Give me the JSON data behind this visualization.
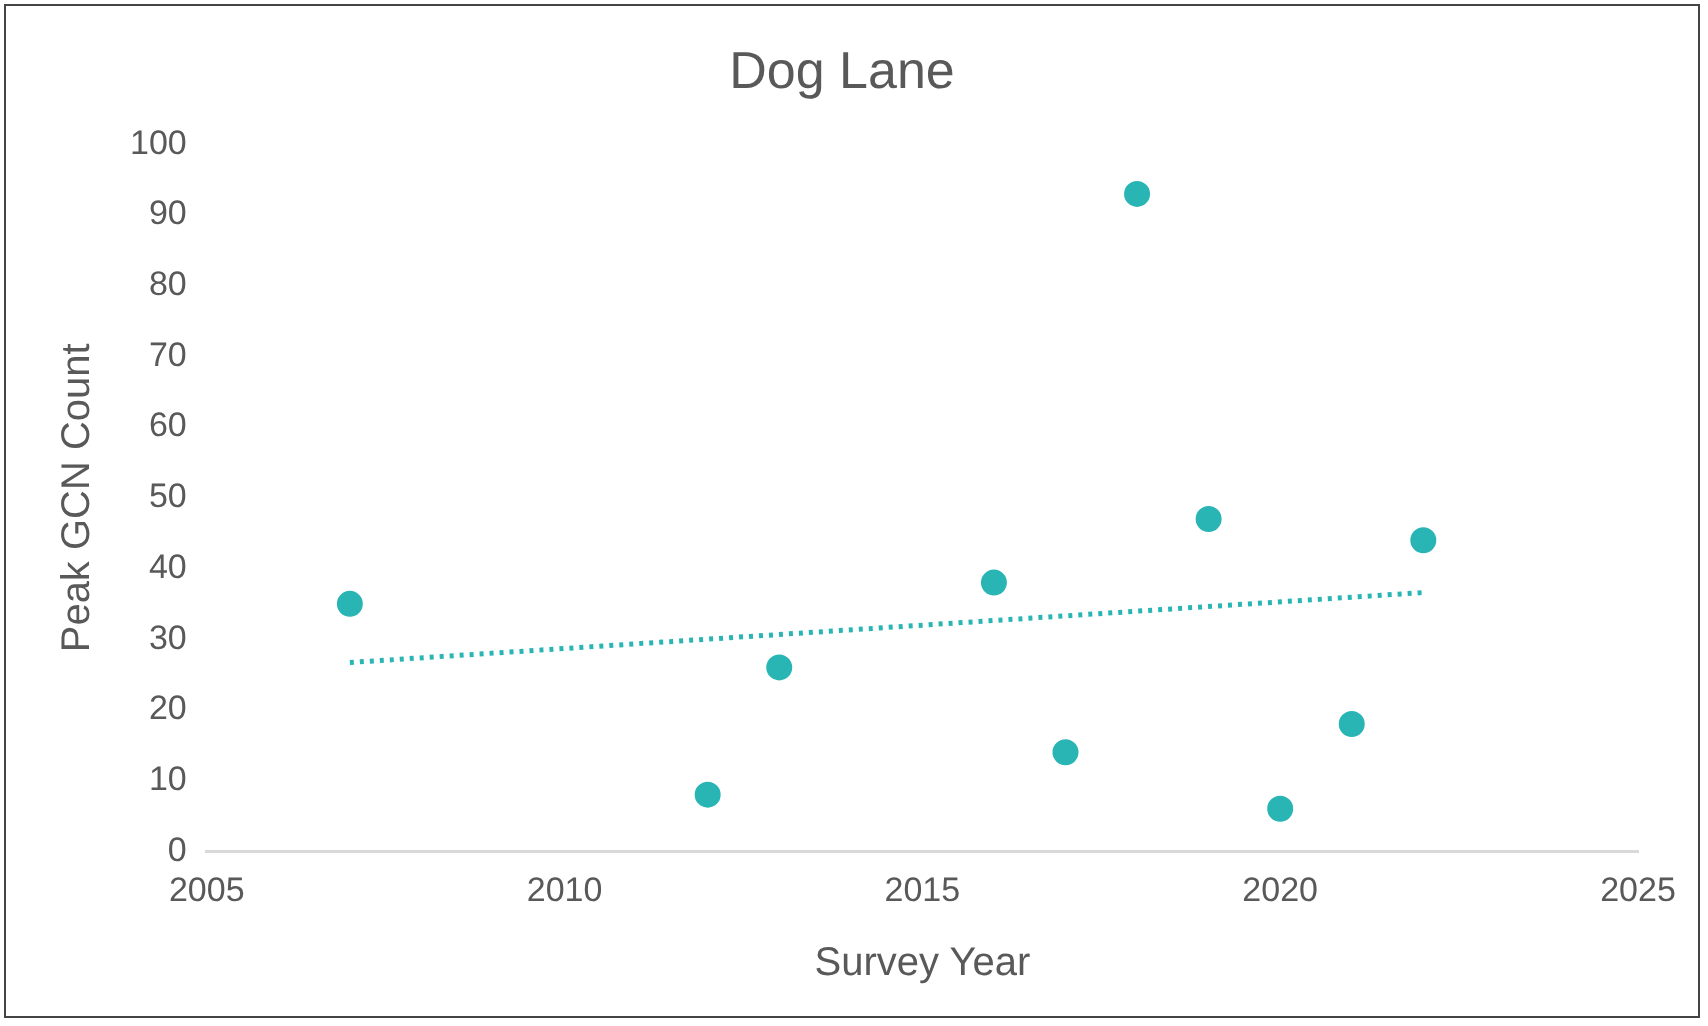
{
  "chart_data": {
    "type": "scatter",
    "title": "Dog Lane",
    "xlabel": "Survey Year",
    "ylabel": "Peak GCN Count",
    "xlim": [
      2005,
      2025
    ],
    "xticks": [
      2005,
      2010,
      2015,
      2020,
      2025
    ],
    "ylim": [
      0,
      100
    ],
    "yticks": [
      0,
      10,
      20,
      30,
      40,
      50,
      60,
      70,
      80,
      90,
      100
    ],
    "grid": false,
    "legend": false,
    "marker": "circle",
    "series": [
      {
        "color": "#2ab5b5",
        "x": [
          2007,
          2012,
          2013,
          2016,
          2017,
          2018,
          2019,
          2020,
          2021,
          2022
        ],
        "values": [
          35,
          8,
          26,
          38,
          14,
          93,
          47,
          6,
          18,
          44
        ]
      },
      {
        "type": "line",
        "color": "#2ab5b5",
        "line_style": "dotted",
        "marker": "none",
        "x": [
          2007,
          2022
        ],
        "values": [
          26.7,
          36.6
        ]
      }
    ]
  }
}
